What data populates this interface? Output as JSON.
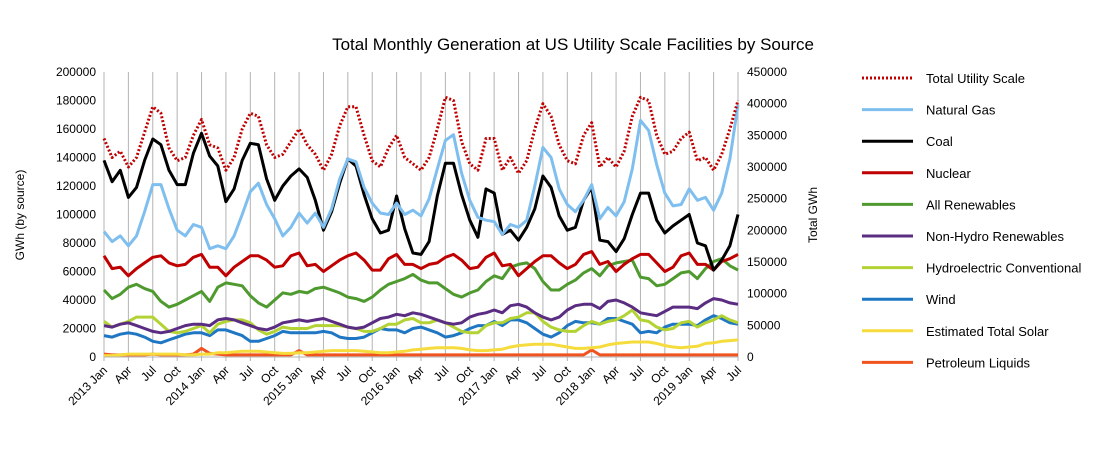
{
  "chart_data": {
    "type": "line",
    "title": "Total Monthly Generation at US Utility Scale Facilities by Source",
    "ylabel": "GWh (by source)",
    "y2label": "Total GWh",
    "ylim": [
      0,
      200000
    ],
    "y2lim": [
      0,
      450000
    ],
    "y_ticks": [
      "0",
      "20000",
      "40000",
      "60000",
      "80000",
      "100000",
      "120000",
      "140000",
      "160000",
      "180000",
      "200000"
    ],
    "y2_ticks": [
      "0",
      "50000",
      "100000",
      "150000",
      "200000",
      "250000",
      "300000",
      "350000",
      "400000",
      "450000"
    ],
    "x_tick_labels": [
      "2013 Jan",
      "Apr",
      "Jul",
      "Oct",
      "2014 Jan",
      "Apr",
      "Jul",
      "Oct",
      "2015 Jan",
      "Apr",
      "Jul",
      "Oct",
      "2016 Jan",
      "Apr",
      "Jul",
      "Oct",
      "2017 Jan",
      "Apr",
      "Jul",
      "Oct",
      "2018 Jan",
      "Apr",
      "Jul",
      "Oct",
      "2019 Jan",
      "Apr",
      "Jul"
    ],
    "grid": "vertical",
    "legend_position": "right",
    "series": [
      {
        "name": "Total Utility Scale",
        "axis": "right",
        "color": "#c00000",
        "style": "dotted",
        "values": [
          345000,
          315000,
          325000,
          300000,
          315000,
          355000,
          395000,
          385000,
          330000,
          310000,
          315000,
          350000,
          375000,
          335000,
          330000,
          295000,
          315000,
          360000,
          385000,
          380000,
          335000,
          315000,
          320000,
          340000,
          360000,
          335000,
          320000,
          295000,
          320000,
          365000,
          395000,
          395000,
          350000,
          310000,
          300000,
          330000,
          350000,
          315000,
          305000,
          295000,
          315000,
          360000,
          410000,
          405000,
          340000,
          305000,
          295000,
          345000,
          345000,
          295000,
          315000,
          290000,
          310000,
          360000,
          400000,
          380000,
          335000,
          310000,
          305000,
          350000,
          370000,
          300000,
          315000,
          300000,
          325000,
          380000,
          410000,
          405000,
          350000,
          320000,
          325000,
          345000,
          355000,
          310000,
          315000,
          295000,
          320000,
          360000,
          405000
        ]
      },
      {
        "name": "Natural Gas",
        "axis": "left",
        "color": "#7fbfef",
        "values": [
          88000,
          81000,
          85000,
          78000,
          85000,
          102000,
          121000,
          121000,
          104000,
          89000,
          85000,
          93000,
          91000,
          76000,
          78000,
          76000,
          85000,
          100000,
          116000,
          122000,
          107000,
          97000,
          85000,
          91000,
          101000,
          94000,
          101000,
          91000,
          104000,
          125000,
          139000,
          137000,
          119000,
          108000,
          101000,
          100000,
          108000,
          100000,
          103000,
          99000,
          111000,
          132000,
          152000,
          156000,
          129000,
          110000,
          98000,
          96000,
          95000,
          86000,
          93000,
          91000,
          96000,
          120000,
          147000,
          140000,
          118000,
          107000,
          102000,
          110000,
          121000,
          97000,
          105000,
          99000,
          109000,
          132000,
          166000,
          159000,
          135000,
          115000,
          106000,
          107000,
          118000,
          110000,
          112000,
          103000,
          115000,
          139000,
          177000
        ]
      },
      {
        "name": "Coal",
        "axis": "left",
        "color": "#000000",
        "values": [
          138000,
          123000,
          131000,
          112000,
          119000,
          138000,
          153000,
          149000,
          131000,
          121000,
          121000,
          143000,
          157000,
          141000,
          134000,
          109000,
          118000,
          138000,
          150000,
          149000,
          125000,
          110000,
          120000,
          127000,
          132000,
          126000,
          110000,
          89000,
          102000,
          122000,
          139000,
          134000,
          114000,
          97000,
          87000,
          89000,
          113000,
          90000,
          73000,
          72000,
          81000,
          113000,
          136000,
          136000,
          114000,
          96000,
          84000,
          118000,
          115000,
          86000,
          89000,
          82000,
          91000,
          104000,
          127000,
          119000,
          99000,
          89000,
          91000,
          110000,
          119000,
          82000,
          81000,
          74000,
          83000,
          100000,
          115000,
          115000,
          96000,
          87000,
          92000,
          96000,
          100000,
          80000,
          78000,
          61000,
          68000,
          78000,
          100000
        ]
      },
      {
        "name": "Nuclear",
        "axis": "left",
        "color": "#c00000",
        "values": [
          71000,
          62000,
          63000,
          57000,
          62000,
          66000,
          70000,
          71000,
          66000,
          64000,
          65000,
          70000,
          72000,
          63000,
          63000,
          57000,
          63000,
          67000,
          71000,
          71000,
          68000,
          63000,
          64000,
          71000,
          73000,
          64000,
          65000,
          60000,
          64000,
          68000,
          71000,
          73000,
          68000,
          61000,
          61000,
          69000,
          72000,
          65000,
          65000,
          62000,
          65000,
          66000,
          70000,
          72000,
          68000,
          62000,
          63000,
          70000,
          73000,
          64000,
          65000,
          57000,
          62000,
          67000,
          71000,
          71000,
          66000,
          62000,
          65000,
          72000,
          74000,
          65000,
          67000,
          60000,
          65000,
          69000,
          72000,
          72000,
          66000,
          60000,
          63000,
          71000,
          73000,
          65000,
          65000,
          61000,
          67000,
          69000,
          72000
        ]
      },
      {
        "name": "All Renewables",
        "axis": "left",
        "color": "#4e9a2f",
        "values": [
          47000,
          41000,
          44000,
          49000,
          51000,
          48000,
          46000,
          39000,
          35000,
          37000,
          40000,
          43000,
          46000,
          39000,
          49000,
          52000,
          51000,
          50000,
          43000,
          38000,
          35000,
          40000,
          45000,
          44000,
          46000,
          45000,
          48000,
          49000,
          47000,
          45000,
          42000,
          41000,
          39000,
          42000,
          47000,
          51000,
          53000,
          55000,
          58000,
          54000,
          52000,
          52000,
          48000,
          44000,
          42000,
          45000,
          47000,
          53000,
          57000,
          55000,
          63000,
          65000,
          66000,
          62000,
          53000,
          47000,
          47000,
          51000,
          54000,
          59000,
          62000,
          57000,
          64000,
          66000,
          67000,
          68000,
          56000,
          55000,
          50000,
          51000,
          55000,
          59000,
          60000,
          55000,
          62000,
          67000,
          69000,
          64000,
          61000
        ]
      },
      {
        "name": "Non-Hydro Renewables",
        "axis": "left",
        "color": "#5b2d82",
        "values": [
          22000,
          21000,
          23000,
          24000,
          22000,
          20000,
          18000,
          17000,
          18000,
          20000,
          22000,
          23000,
          23000,
          22000,
          26000,
          27000,
          26000,
          24000,
          22000,
          20000,
          19000,
          21000,
          24000,
          25000,
          26000,
          25000,
          26000,
          27000,
          25000,
          23000,
          21000,
          20000,
          21000,
          24000,
          27000,
          28000,
          30000,
          29000,
          31000,
          30000,
          28000,
          26000,
          24000,
          23000,
          24000,
          28000,
          30000,
          31000,
          33000,
          31000,
          36000,
          37000,
          35000,
          31000,
          28000,
          26000,
          28000,
          33000,
          36000,
          37000,
          37000,
          34000,
          39000,
          40000,
          38000,
          35000,
          31000,
          30000,
          29000,
          32000,
          35000,
          35000,
          35000,
          34000,
          38000,
          41000,
          40000,
          38000,
          37000
        ]
      },
      {
        "name": "Hydroelectric Conventional",
        "axis": "left",
        "color": "#b3d335",
        "values": [
          25000,
          21000,
          23000,
          25000,
          28000,
          28000,
          28000,
          23000,
          18000,
          17000,
          18000,
          20000,
          22000,
          17000,
          23000,
          25000,
          26000,
          26000,
          24000,
          19000,
          16000,
          18000,
          21000,
          20000,
          20000,
          20000,
          22000,
          22000,
          22000,
          22000,
          21000,
          20000,
          18000,
          18000,
          20000,
          23000,
          23000,
          26000,
          27000,
          24000,
          24000,
          26000,
          24000,
          21000,
          18000,
          17000,
          17000,
          22000,
          24000,
          24000,
          27000,
          28000,
          31000,
          31000,
          25000,
          21000,
          19000,
          18000,
          18000,
          22000,
          25000,
          23000,
          25000,
          26000,
          29000,
          33000,
          26000,
          25000,
          21000,
          19000,
          20000,
          24000,
          25000,
          21000,
          24000,
          26000,
          29000,
          26000,
          24000
        ]
      },
      {
        "name": "Wind",
        "axis": "left",
        "color": "#1f77c4",
        "values": [
          15000,
          14000,
          16000,
          17000,
          16000,
          14000,
          11000,
          10000,
          12000,
          14000,
          16000,
          17000,
          17000,
          15000,
          19000,
          19000,
          17000,
          15000,
          11000,
          11000,
          13000,
          15000,
          18000,
          17000,
          17000,
          17000,
          17000,
          18000,
          17000,
          14000,
          13000,
          13000,
          14000,
          17000,
          20000,
          19000,
          19000,
          17000,
          20000,
          21000,
          19000,
          17000,
          14000,
          15000,
          17000,
          20000,
          22000,
          22000,
          25000,
          22000,
          26000,
          26000,
          24000,
          20000,
          16000,
          14000,
          17000,
          22000,
          25000,
          24000,
          24000,
          23000,
          27000,
          27000,
          25000,
          23000,
          17000,
          18000,
          17000,
          21000,
          23000,
          23000,
          23000,
          22000,
          26000,
          29000,
          27000,
          24000,
          23000
        ]
      },
      {
        "name": "Estimated Total Solar",
        "axis": "left",
        "color": "#f5dc3c",
        "values": [
          1000,
          1000,
          1500,
          2000,
          2000,
          2000,
          2000,
          2000,
          2000,
          2000,
          1500,
          1500,
          2000,
          2000,
          3000,
          3000,
          3500,
          4000,
          4000,
          4000,
          3500,
          3000,
          2500,
          2500,
          3000,
          3000,
          3500,
          4000,
          4500,
          4500,
          4500,
          4500,
          4000,
          3500,
          3000,
          3000,
          3500,
          4000,
          5000,
          5500,
          6000,
          6500,
          6500,
          6500,
          6000,
          5000,
          4500,
          4500,
          5000,
          5500,
          7000,
          8000,
          8500,
          9000,
          9000,
          9000,
          8000,
          7000,
          6000,
          6000,
          6500,
          7000,
          8500,
          9500,
          10000,
          10500,
          10500,
          10500,
          9500,
          8000,
          7000,
          6500,
          7000,
          7500,
          9500,
          10000,
          11000,
          11500,
          12000
        ]
      },
      {
        "name": "Petroleum Liquids",
        "axis": "left",
        "color": "#f0531f",
        "values": [
          2000,
          1500,
          1500,
          1500,
          1500,
          1500,
          2000,
          1500,
          1500,
          1500,
          1500,
          2000,
          6000,
          2500,
          2000,
          1500,
          1500,
          1500,
          1500,
          1500,
          1500,
          1500,
          1500,
          1500,
          4500,
          1500,
          1500,
          1500,
          1500,
          1500,
          1500,
          1500,
          1500,
          1500,
          1500,
          1500,
          1500,
          1500,
          1500,
          1500,
          1500,
          1500,
          1500,
          1500,
          1500,
          1500,
          1500,
          1500,
          1500,
          1500,
          1500,
          1500,
          1500,
          1500,
          1500,
          1500,
          1500,
          1500,
          1500,
          1500,
          5000,
          1500,
          1500,
          1500,
          1500,
          1500,
          1500,
          1500,
          1500,
          1500,
          1500,
          1500,
          1500,
          1500,
          1500,
          1500,
          1500,
          1500,
          1500
        ]
      }
    ]
  }
}
